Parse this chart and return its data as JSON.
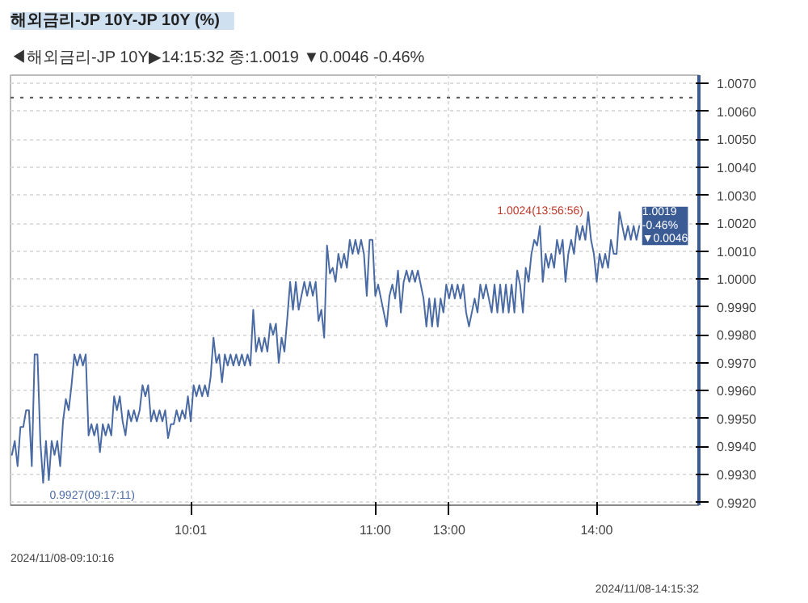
{
  "chart_data": {
    "type": "line",
    "title": "해외금리-JP    10Y-JP 10Y (%)",
    "subtitle": "◀해외금리-JP 10Y▶14:15:32 종:1.0019 ▼0.0046 -0.46%",
    "annotations": [
      "0.9927(09:17:11)",
      "1.0024(13:56:56)",
      "1.0019\n-0.46%\n▼0.0046",
      "2024/11/08-09:10:16",
      "2024/11/08-14:15:32"
    ],
    "categories": [
      null,
      null,
      null,
      null,
      null,
      null,
      null,
      null,
      null,
      null,
      null,
      null,
      null,
      null,
      null,
      null,
      null,
      null,
      null,
      null,
      null,
      null,
      null,
      null,
      null,
      null,
      null,
      null,
      null,
      null,
      null,
      null,
      null,
      null,
      null,
      null,
      null,
      null,
      null,
      null,
      null,
      null,
      null,
      null,
      null,
      null,
      null,
      null,
      null,
      null,
      null,
      null,
      null,
      null,
      null,
      null,
      null,
      null,
      null,
      null,
      null,
      null,
      null,
      "10:01",
      null,
      null,
      null,
      null,
      null,
      null,
      null,
      null,
      null,
      null,
      null,
      null,
      null,
      null,
      null,
      null,
      null,
      null,
      null,
      null,
      null,
      null,
      null,
      null,
      null,
      null,
      null,
      null,
      null,
      null,
      null,
      null,
      null,
      null,
      null,
      null,
      null,
      null,
      null,
      null,
      null,
      null,
      null,
      null,
      null,
      null,
      null,
      null,
      null,
      null,
      null,
      null,
      null,
      null,
      null,
      null,
      null,
      null,
      null,
      null,
      null,
      null,
      null,
      null,
      "11:00",
      null,
      null,
      null,
      null,
      null,
      null,
      null,
      null,
      null,
      null,
      null,
      null,
      null,
      null,
      null,
      null,
      null,
      null,
      null,
      null,
      null,
      null,
      null,
      null,
      null,
      "13:00",
      null,
      null,
      null,
      null,
      null,
      null,
      null,
      null,
      null,
      null,
      null,
      null,
      null,
      null,
      null,
      null,
      null,
      null,
      null,
      null,
      null,
      null,
      null,
      null,
      null,
      null,
      null,
      null,
      null,
      null,
      null,
      null,
      null,
      null,
      null,
      null,
      null,
      null,
      null,
      null,
      null,
      null,
      null,
      null,
      null,
      null,
      null,
      null,
      null,
      null,
      null,
      "14:00",
      null,
      null,
      null,
      null,
      null,
      null,
      null,
      null,
      null,
      null,
      null,
      null,
      null,
      null,
      null
    ],
    "series": [
      {
        "color": "#4a6aa3",
        "values": [
          0.9937,
          0.9942,
          0.9933,
          0.9947,
          0.9947,
          0.9953,
          0.9953,
          0.9933,
          0.9973,
          0.9973,
          0.9942,
          0.9927,
          0.9942,
          0.9928,
          0.9942,
          0.9937,
          0.9942,
          0.9933,
          0.9949,
          0.9957,
          0.9953,
          0.9962,
          0.9973,
          0.9969,
          0.9973,
          0.9969,
          0.9973,
          0.9944,
          0.9948,
          0.9944,
          0.9948,
          0.9938,
          0.9948,
          0.9944,
          0.9948,
          0.9944,
          0.9958,
          0.9953,
          0.9958,
          0.9949,
          0.9944,
          0.9953,
          0.9949,
          0.9953,
          0.9949,
          0.9953,
          0.9962,
          0.9958,
          0.9962,
          0.9949,
          0.9953,
          0.9949,
          0.9953,
          0.9949,
          0.9953,
          0.9943,
          0.9948,
          0.9948,
          0.9953,
          0.9949,
          0.9953,
          0.995,
          0.9958,
          0.9949,
          0.9962,
          0.9958,
          0.9962,
          0.9958,
          0.9962,
          0.9958,
          0.9965,
          0.9979,
          0.997,
          0.9973,
          0.9963,
          0.9973,
          0.9969,
          0.9973,
          0.9969,
          0.9973,
          0.9969,
          0.9973,
          0.9969,
          0.9973,
          0.9969,
          0.9989,
          0.9974,
          0.9979,
          0.9974,
          0.9979,
          0.9974,
          0.9984,
          0.998,
          0.9984,
          0.997,
          0.9979,
          0.9974,
          0.9986,
          0.9999,
          0.9989,
          0.9999,
          0.9989,
          0.9994,
          0.9999,
          0.9994,
          0.9999,
          0.9994,
          0.9999,
          0.9985,
          0.9989,
          0.9979,
          1.0012,
          1.0002,
          1.0004,
          0.9999,
          1.0009,
          1.0004,
          1.0009,
          1.0004,
          1.0014,
          1.0009,
          1.0014,
          1.0009,
          1.0014,
          1.0009,
          0.9994,
          1.0014,
          1.0014,
          0.9994,
          0.9998,
          0.9993,
          0.9988,
          0.9983,
          0.9994,
          0.9998,
          0.9993,
          1.0003,
          0.9988,
          0.9999,
          1.0003,
          0.9999,
          1.0003,
          0.9999,
          1.0003,
          0.9998,
          0.9993,
          0.9983,
          0.9993,
          0.9983,
          0.9993,
          0.9983,
          0.9993,
          0.9988,
          0.9998,
          0.9993,
          0.9998,
          0.9993,
          0.9998,
          0.9993,
          0.9998,
          0.9988,
          0.9983,
          0.9988,
          0.9993,
          0.9988,
          0.9998,
          0.9993,
          0.9998,
          0.9993,
          0.9988,
          0.9998,
          0.9988,
          0.9998,
          0.9988,
          0.9998,
          0.9988,
          0.9998,
          0.9988,
          1.0003,
          0.9998,
          0.9988,
          1.0004,
          0.9999,
          1.0009,
          1.0014,
          1.0012,
          1.0019,
          0.9999,
          1.0009,
          1.0004,
          1.0009,
          1.0004,
          1.0014,
          1.0009,
          1.0014,
          0.9999,
          1.0009,
          1.0014,
          1.0009,
          1.0019,
          1.0014,
          1.0019,
          1.0014,
          1.0024,
          1.0014,
          1.0009,
          0.9999,
          1.0009,
          1.0004,
          1.0009,
          1.0004,
          1.0014,
          1.0009,
          1.0009,
          1.0024,
          1.0019,
          1.0014,
          1.0019,
          1.0014,
          1.0019,
          1.0014,
          1.0019
        ]
      }
    ],
    "ylim": [
      0.9919,
      1.0073
    ],
    "yticks": [
      {
        "value": 0.992,
        "label": "0.9920"
      },
      {
        "value": 0.993,
        "label": "0.9930"
      },
      {
        "value": 0.994,
        "label": "0.9940"
      },
      {
        "value": 0.995,
        "label": "0.9950"
      },
      {
        "value": 0.996,
        "label": "0.9960"
      },
      {
        "value": 0.997,
        "label": "0.9970"
      },
      {
        "value": 0.998,
        "label": "0.9980"
      },
      {
        "value": 0.999,
        "label": "0.9990"
      },
      {
        "value": 1.0,
        "label": "1.0000"
      },
      {
        "value": 1.001,
        "label": "1.0010"
      },
      {
        "value": 1.002,
        "label": "1.0020"
      },
      {
        "value": 1.003,
        "label": "1.0030"
      },
      {
        "value": 1.004,
        "label": "1.0040"
      },
      {
        "value": 1.005,
        "label": "1.0050"
      },
      {
        "value": 1.006,
        "label": "1.0060"
      },
      {
        "value": 1.007,
        "label": "1.0070"
      }
    ],
    "ref_lines": [
      {
        "axis": "y",
        "value": 1.0065,
        "color": "#555555",
        "line_style": "dotted"
      }
    ],
    "grid": true,
    "marker": "none",
    "line_style": "solid"
  }
}
